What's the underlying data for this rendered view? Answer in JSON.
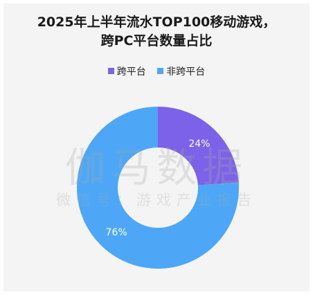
{
  "chart_data": {
    "type": "pie",
    "title_lines": [
      "2025年上半年流水TOP100移动游戏，",
      "跨PC平台数量占比"
    ],
    "categories": [
      "跨平台",
      "非跨平台"
    ],
    "values": [
      24,
      76
    ],
    "labels": [
      "24%",
      "76%"
    ],
    "colors": [
      "#7b62e8",
      "#4da7f6"
    ],
    "donut": true,
    "legend_position": "top"
  },
  "watermark": {
    "main": "伽马数据",
    "sub": "微信号：游戏产业报告"
  }
}
